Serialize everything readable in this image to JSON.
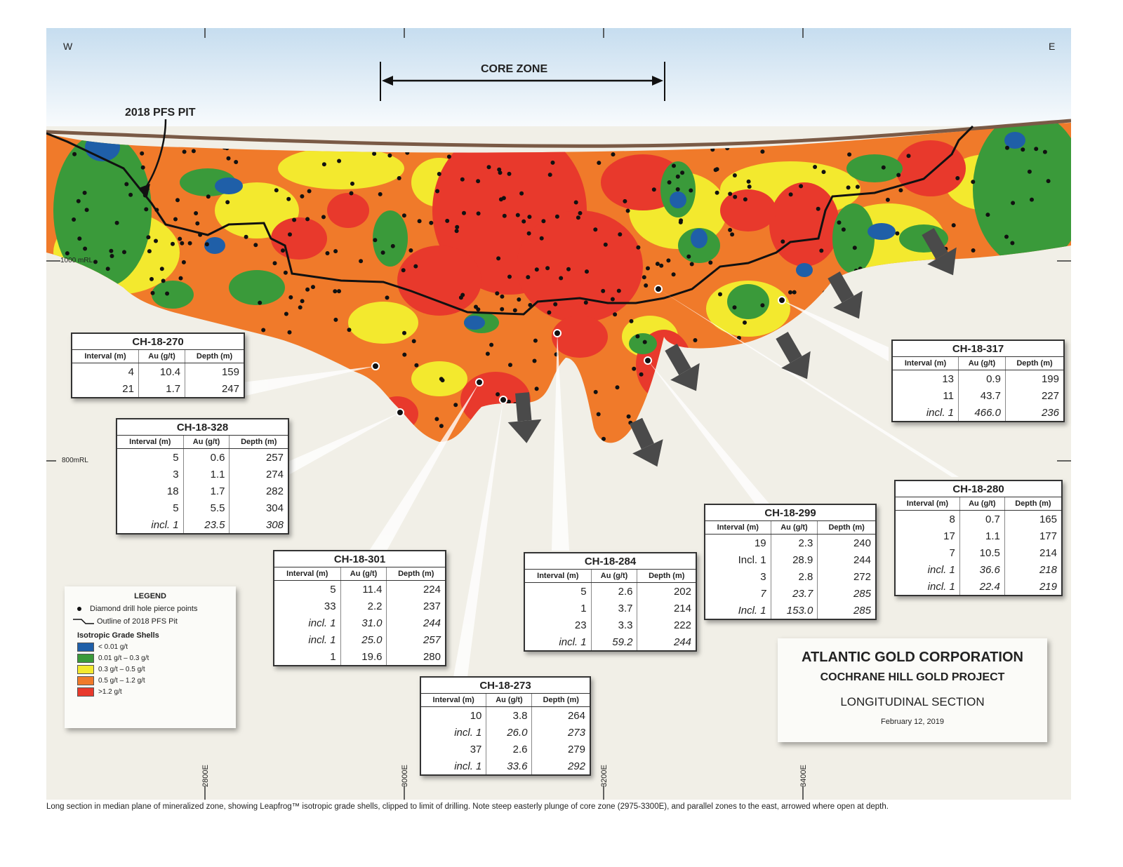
{
  "compass": {
    "west": "W",
    "east": "E"
  },
  "core_zone_label": "CORE ZONE",
  "pit_label": "2018 PFS PIT",
  "elevation_labels": {
    "upper": "1000 mRL",
    "lower": "800mRL"
  },
  "easting_labels": [
    "2800E",
    "3000E",
    "3200E",
    "3400E"
  ],
  "colors": {
    "sky_top": "#c9dff0",
    "background": "#f1efe7",
    "blue": "#1f5fa8",
    "green": "#3a9a3a",
    "yellow": "#f3e92e",
    "orange": "#f07a2a",
    "red": "#e8392c",
    "arrow": "#4a4a4a",
    "topo": "#7a5a46"
  },
  "table_headers": {
    "interval": "Interval (m)",
    "au": "Au (g/t)",
    "depth": "Depth (m)"
  },
  "drill_holes": [
    {
      "id": "CH-18-270",
      "rows": [
        {
          "interval": "4",
          "au": "10.4",
          "depth": "159",
          "italic": false
        },
        {
          "interval": "21",
          "au": "1.7",
          "depth": "247",
          "italic": false
        }
      ]
    },
    {
      "id": "CH-18-328",
      "rows": [
        {
          "interval": "5",
          "au": "0.6",
          "depth": "257",
          "italic": false
        },
        {
          "interval": "3",
          "au": "1.1",
          "depth": "274",
          "italic": false
        },
        {
          "interval": "18",
          "au": "1.7",
          "depth": "282",
          "italic": false
        },
        {
          "interval": "5",
          "au": "5.5",
          "depth": "304",
          "italic": false
        },
        {
          "interval": "incl. 1",
          "au": "23.5",
          "depth": "308",
          "italic": true
        }
      ]
    },
    {
      "id": "CH-18-301",
      "rows": [
        {
          "interval": "5",
          "au": "11.4",
          "depth": "224",
          "italic": false
        },
        {
          "interval": "33",
          "au": "2.2",
          "depth": "237",
          "italic": false
        },
        {
          "interval": "incl. 1",
          "au": "31.0",
          "depth": "244",
          "italic": true
        },
        {
          "interval": "incl. 1",
          "au": "25.0",
          "depth": "257",
          "italic": true
        },
        {
          "interval": "1",
          "au": "19.6",
          "depth": "280",
          "italic": false
        }
      ]
    },
    {
      "id": "CH-18-273",
      "rows": [
        {
          "interval": "10",
          "au": "3.8",
          "depth": "264",
          "italic": false
        },
        {
          "interval": "incl. 1",
          "au": "26.0",
          "depth": "273",
          "italic": true
        },
        {
          "interval": "37",
          "au": "2.6",
          "depth": "279",
          "italic": false
        },
        {
          "interval": "incl. 1",
          "au": "33.6",
          "depth": "292",
          "italic": true
        }
      ]
    },
    {
      "id": "CH-18-284",
      "rows": [
        {
          "interval": "5",
          "au": "2.6",
          "depth": "202",
          "italic": false
        },
        {
          "interval": "1",
          "au": "3.7",
          "depth": "214",
          "italic": false
        },
        {
          "interval": "23",
          "au": "3.3",
          "depth": "222",
          "italic": false
        },
        {
          "interval": "incl. 1",
          "au": "59.2",
          "depth": "244",
          "italic": true
        }
      ]
    },
    {
      "id": "CH-18-299",
      "rows": [
        {
          "interval": "19",
          "au": "2.3",
          "depth": "240",
          "italic": false
        },
        {
          "interval": "Incl. 1",
          "au": "28.9",
          "depth": "244",
          "italic": false
        },
        {
          "interval": "3",
          "au": "2.8",
          "depth": "272",
          "italic": false
        },
        {
          "interval": "7",
          "au": "23.7",
          "depth": "285",
          "italic": true
        },
        {
          "interval": "Incl. 1",
          "au": "153.0",
          "depth": "285",
          "italic": true
        }
      ]
    },
    {
      "id": "CH-18-317",
      "rows": [
        {
          "interval": "13",
          "au": "0.9",
          "depth": "199",
          "italic": false
        },
        {
          "interval": "11",
          "au": "43.7",
          "depth": "227",
          "italic": false
        },
        {
          "interval": "incl. 1",
          "au": "466.0",
          "depth": "236",
          "italic": true
        }
      ]
    },
    {
      "id": "CH-18-280",
      "rows": [
        {
          "interval": "8",
          "au": "0.7",
          "depth": "165",
          "italic": false
        },
        {
          "interval": "17",
          "au": "1.1",
          "depth": "177",
          "italic": false
        },
        {
          "interval": "7",
          "au": "10.5",
          "depth": "214",
          "italic": false
        },
        {
          "interval": "incl. 1",
          "au": "36.6",
          "depth": "218",
          "italic": true
        },
        {
          "interval": "incl. 1",
          "au": "22.4",
          "depth": "219",
          "italic": true
        }
      ]
    }
  ],
  "legend": {
    "title": "LEGEND",
    "drill_points": "Diamond drill hole pierce points",
    "pit_outline": "Outline of 2018 PFS Pit",
    "shells_title": "Isotropic Grade Shells",
    "shells": [
      {
        "label": "< 0.01 g/t",
        "color": "#1f5fa8"
      },
      {
        "label": "0.01 g/t – 0.3 g/t",
        "color": "#3a9a3a"
      },
      {
        "label": "0.3 g/t – 0.5 g/t",
        "color": "#f3e92e"
      },
      {
        "label": "0.5 g/t –  1.2 g/t",
        "color": "#f07a2a"
      },
      {
        "label": ">1.2 g/t",
        "color": "#e8392c"
      }
    ]
  },
  "title_block": {
    "company": "ATLANTIC GOLD CORPORATION",
    "project": "COCHRANE HILL GOLD PROJECT",
    "section": "LONGITUDINAL SECTION",
    "date": "February 12, 2019"
  },
  "caption": "Long section in median plane of mineralized zone, showing Leapfrog™ isotropic grade shells, clipped to limit of drilling. Note steep easterly plunge of core zone (2975-3300E), and parallel zones to the east, arrowed where open at depth."
}
